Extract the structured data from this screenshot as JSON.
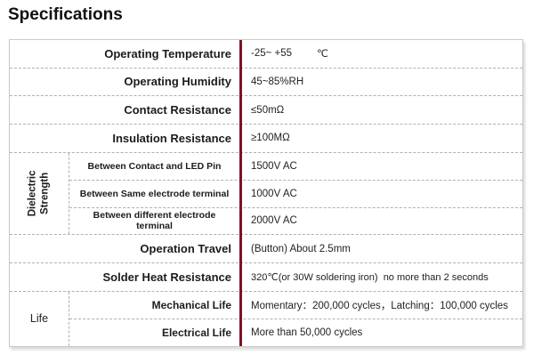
{
  "title": "Specifications",
  "colors": {
    "accent_divider": "#7d1321",
    "dashed_line": "#b0b0b0",
    "table_border": "#c9c9c9"
  },
  "table": {
    "rows": [
      {
        "type": "simple",
        "label": "Operating Temperature",
        "value": "-25~ +55",
        "unit": "℃"
      },
      {
        "type": "simple",
        "label": "Operating Humidity",
        "value": "45~85%RH"
      },
      {
        "type": "simple",
        "label": "Contact Resistance",
        "value": "≤50mΩ"
      },
      {
        "type": "simple",
        "label": "Insulation Resistance",
        "value": "≥100MΩ"
      },
      {
        "type": "group",
        "label": "Dielectric Strength",
        "label_orientation": "vertical",
        "sub_align": "center",
        "sub_rows": [
          {
            "label": "Between Contact and LED Pin",
            "value": "1500V AC"
          },
          {
            "label": "Between Same electrode terminal",
            "value": "1000V AC"
          },
          {
            "label": "Between different electrode terminal",
            "value": "2000V AC"
          }
        ]
      },
      {
        "type": "simple",
        "label": "Operation Travel",
        "value": "(Button) About 2.5mm"
      },
      {
        "type": "simple",
        "label": "Solder Heat Resistance",
        "value": "320℃(or 30W soldering iron)  no more than 2 seconds",
        "small": true
      },
      {
        "type": "group",
        "label": "Life",
        "label_orientation": "horizontal",
        "sub_align": "right",
        "sub_rows": [
          {
            "label": "Mechanical Life",
            "value": "Momentary：200,000 cycles，Latching：100,000 cycles"
          },
          {
            "label": "Electrical Life",
            "value": "More than 50,000 cycles"
          }
        ]
      }
    ]
  }
}
